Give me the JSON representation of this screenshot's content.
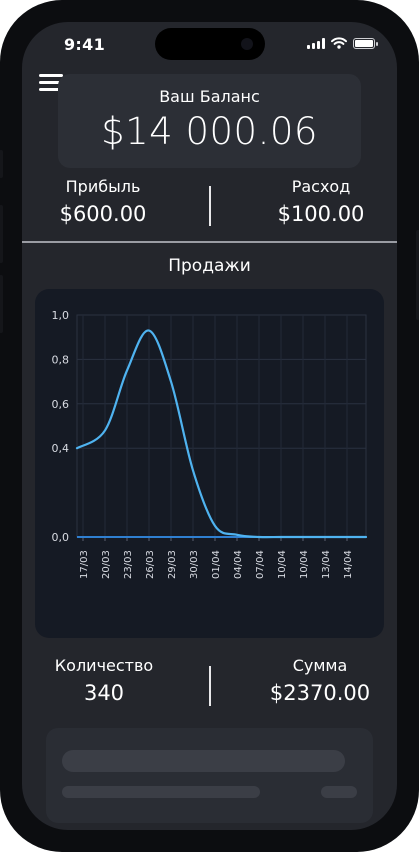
{
  "status": {
    "time": "9:41"
  },
  "balance": {
    "label": "Ваш Баланс",
    "value": "$14 000.06"
  },
  "summary": {
    "profit": {
      "label": "Прибыль",
      "value": "$600.00"
    },
    "expense": {
      "label": "Расход",
      "value": "$100.00"
    }
  },
  "sales": {
    "title": "Продажи"
  },
  "totals": {
    "quantity": {
      "label": "Количество",
      "value": "340"
    },
    "sum": {
      "label": "Сумма",
      "value": "$2370.00"
    }
  },
  "colors": {
    "line": "#4fb3f0",
    "card": "#151a24",
    "screen": "#24262c"
  },
  "chart_data": {
    "type": "line",
    "title": "",
    "xlabel": "",
    "ylabel": "",
    "ylim": [
      0,
      1
    ],
    "yticks": [
      "0,0",
      "0,4",
      "0,6",
      "0,8",
      "1,0"
    ],
    "ytick_values": [
      0,
      0.4,
      0.6,
      0.8,
      1.0
    ],
    "x": [
      "17/03",
      "20/03",
      "23/03",
      "26/03",
      "29/03",
      "30/03",
      "01/04",
      "04/04",
      "07/04",
      "10/04",
      "10/04",
      "13/04",
      "14/04"
    ],
    "grid": true,
    "series": [
      {
        "values": [
          0.4,
          0.48,
          0.75,
          0.93,
          0.7,
          0.3,
          0.05,
          0.01,
          0.0,
          0.0,
          0.0,
          0.0,
          0.0
        ]
      }
    ]
  }
}
